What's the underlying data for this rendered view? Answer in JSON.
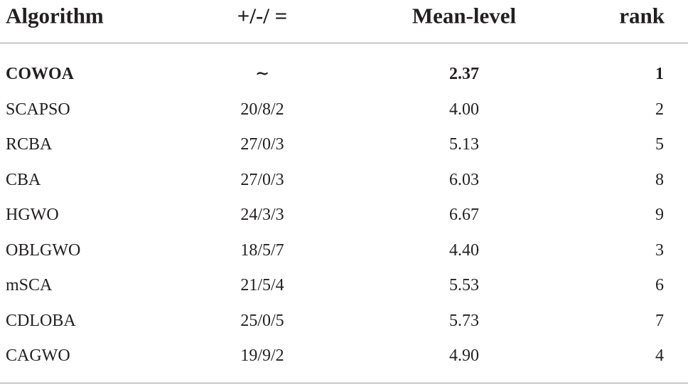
{
  "table": {
    "header": [
      "Algorithm",
      "+/-/ =",
      "Mean-level",
      "rank"
    ],
    "rows": [
      [
        "COWOA",
        "∼",
        "2.37",
        "1"
      ],
      [
        "SCAPSO",
        "20/8/2",
        "4.00",
        "2"
      ],
      [
        "RCBA",
        "27/0/3",
        "5.13",
        "5"
      ],
      [
        "CBA",
        "27/0/3",
        "6.03",
        "8"
      ],
      [
        "HGWO",
        "24/3/3",
        "6.67",
        "9"
      ],
      [
        "OBLGWO",
        "18/5/7",
        "4.40",
        "3"
      ],
      [
        "mSCA",
        "21/5/4",
        "5.53",
        "6"
      ],
      [
        "CDLOBA",
        "25/0/5",
        "5.73",
        "7"
      ],
      [
        "CAGWO",
        "19/9/2",
        "4.90",
        "4"
      ]
    ]
  }
}
